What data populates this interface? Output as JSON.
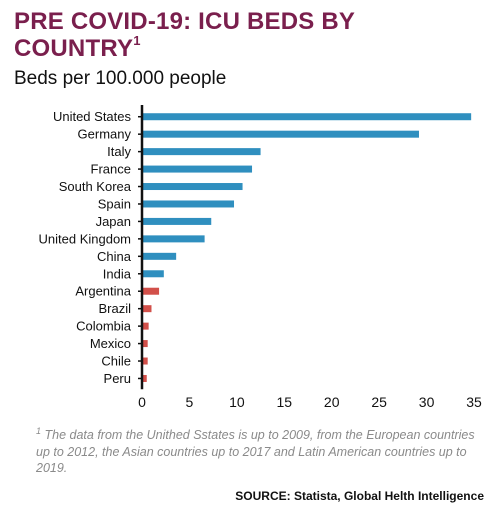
{
  "header": {
    "title": "PRE COVID-19: ICU BEDS BY COUNTRY",
    "title_footnote_marker": "1",
    "subtitle": "Beds per 100.000 people"
  },
  "chart_data": {
    "type": "bar",
    "orientation": "horizontal",
    "categories": [
      "United States",
      "Germany",
      "Italy",
      "France",
      "South Korea",
      "Spain",
      "Japan",
      "United Kingdom",
      "China",
      "India",
      "Argentina",
      "Brazil",
      "Colombia",
      "Mexico",
      "Chile",
      "Peru"
    ],
    "values": [
      34.7,
      29.2,
      12.5,
      11.6,
      10.6,
      9.7,
      7.3,
      6.6,
      3.6,
      2.3,
      1.8,
      1.0,
      0.7,
      0.6,
      0.6,
      0.5
    ],
    "bar_colors": [
      "#2f8fbf",
      "#2f8fbf",
      "#2f8fbf",
      "#2f8fbf",
      "#2f8fbf",
      "#2f8fbf",
      "#2f8fbf",
      "#2f8fbf",
      "#2f8fbf",
      "#2f8fbf",
      "#d2504a",
      "#d2504a",
      "#d2504a",
      "#d2504a",
      "#d2504a",
      "#d2504a"
    ],
    "xlim": [
      0,
      35
    ],
    "xticks": [
      0,
      5,
      10,
      15,
      20,
      25,
      30,
      35
    ],
    "grid": false
  },
  "footnote": {
    "marker": "1",
    "text": "The data from the Unithed Sstates is up to 2009, from the European countries up to 2012, the Asian countries up to 2017 and Latin American countries up to 2019."
  },
  "source": "SOURCE: Statista, Global Helth Intelligence",
  "colors": {
    "title": "#7a1f4d",
    "bar_primary": "#2f8fbf",
    "bar_latin_america": "#d2504a",
    "footnote": "#8a8a8a"
  }
}
